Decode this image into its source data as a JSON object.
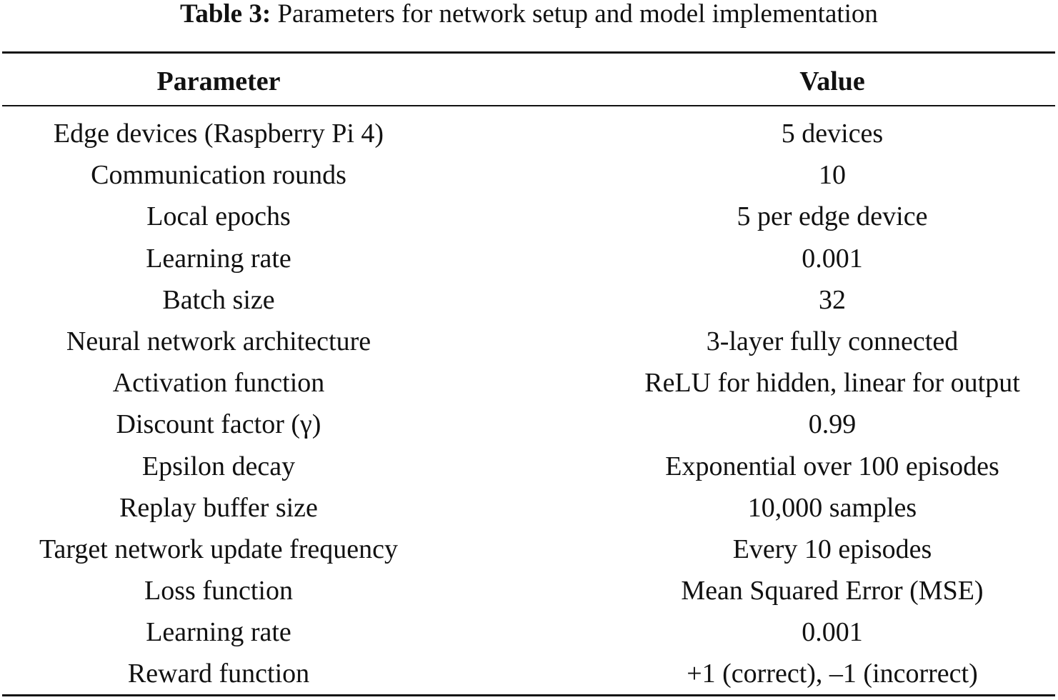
{
  "caption": {
    "label": "Table 3:",
    "text": "Parameters for network setup and model implementation"
  },
  "table": {
    "headers": [
      "Parameter",
      "Value"
    ],
    "rows": [
      [
        "Edge devices (Raspberry Pi 4)",
        "5 devices"
      ],
      [
        "Communication rounds",
        "10"
      ],
      [
        "Local epochs",
        "5 per edge device"
      ],
      [
        "Learning rate",
        "0.001"
      ],
      [
        "Batch size",
        "32"
      ],
      [
        "Neural network architecture",
        "3-layer fully connected"
      ],
      [
        "Activation function",
        "ReLU for hidden, linear for output"
      ],
      [
        "Discount factor (γ)",
        "0.99"
      ],
      [
        "Epsilon decay",
        "Exponential over 100 episodes"
      ],
      [
        "Replay buffer size",
        "10,000 samples"
      ],
      [
        "Target network update frequency",
        "Every 10 episodes"
      ],
      [
        "Loss function",
        "Mean Squared Error (MSE)"
      ],
      [
        "Learning rate",
        "0.001"
      ],
      [
        "Reward function",
        "+1 (correct), –1 (incorrect)"
      ]
    ]
  }
}
